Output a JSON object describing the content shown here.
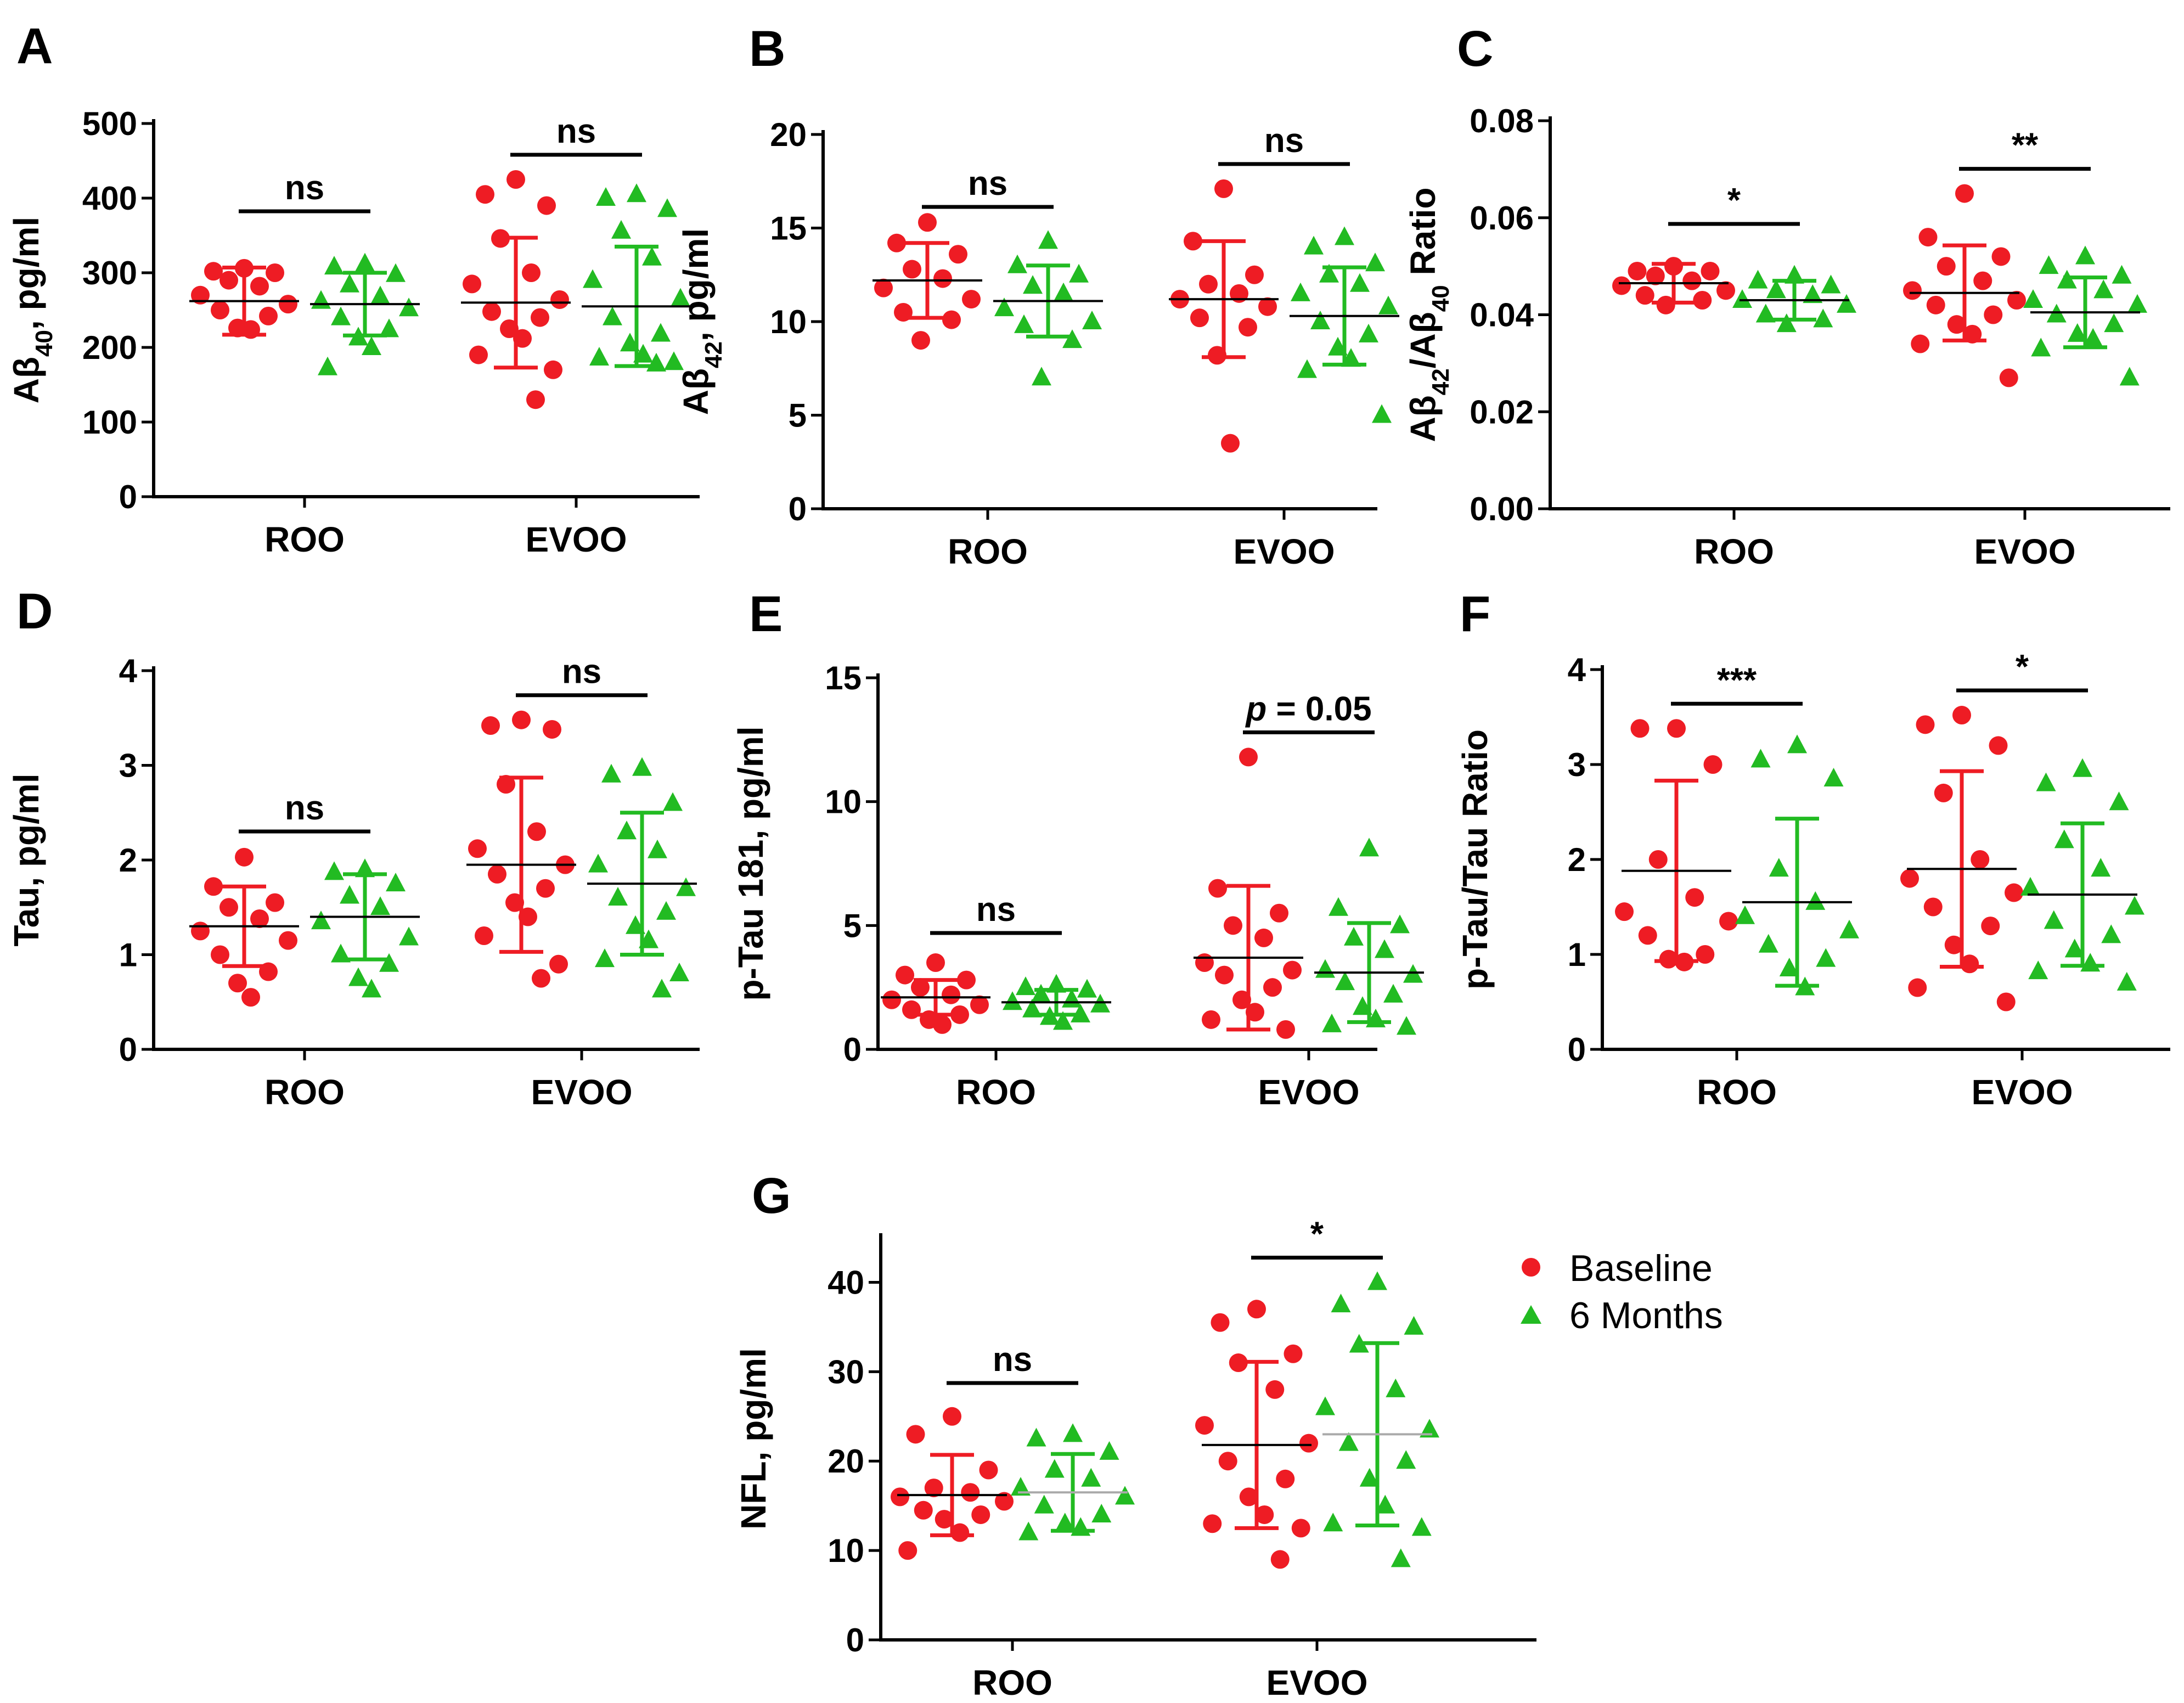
{
  "colors": {
    "baseline": "#ee1c24",
    "six_months": "#22bb22",
    "axis": "#000000",
    "mean_green_G": "#aaaaaa"
  },
  "legend": {
    "items": [
      {
        "label": "Baseline",
        "marker": "circle",
        "color": "#ee1c24"
      },
      {
        "label": "6 Months",
        "marker": "triangle",
        "color": "#22bb22"
      }
    ]
  },
  "chart_data": [
    {
      "panel": "A",
      "type": "scatter",
      "ylabel": "Aβ40, pg/ml",
      "ylim": [
        0,
        500
      ],
      "yticks": [
        "0",
        "100",
        "200",
        "300",
        "400",
        "500"
      ],
      "categories": [
        "ROO",
        "EVOO"
      ],
      "groups": [
        {
          "category": "ROO",
          "series": "Baseline",
          "mean": 262,
          "sd": 45,
          "values": [
            306,
            302,
            300,
            290,
            282,
            270,
            258,
            250,
            242,
            226,
            224
          ]
        },
        {
          "category": "ROO",
          "series": "6 Months",
          "mean": 258,
          "sd": 42,
          "values": [
            312,
            308,
            298,
            284,
            268,
            262,
            252,
            240,
            224,
            213,
            200,
            173
          ]
        },
        {
          "category": "EVOO",
          "series": "Baseline",
          "mean": 260,
          "sd": 87,
          "values": [
            425,
            405,
            390,
            346,
            300,
            285,
            264,
            248,
            240,
            225,
            212,
            190,
            170,
            130
          ]
        },
        {
          "category": "EVOO",
          "series": "6 Months",
          "mean": 255,
          "sd": 80,
          "values": [
            405,
            400,
            385,
            356,
            320,
            290,
            265,
            240,
            218,
            205,
            190,
            186,
            180,
            178
          ]
        }
      ],
      "significance": [
        {
          "category": "ROO",
          "label": "ns"
        },
        {
          "category": "EVOO",
          "label": "ns"
        }
      ]
    },
    {
      "panel": "B",
      "type": "scatter",
      "ylabel": "Aβ42, pg/ml",
      "ylim": [
        0,
        20
      ],
      "yticks": [
        "0",
        "5",
        "10",
        "15",
        "20"
      ],
      "categories": [
        "ROO",
        "EVOO"
      ],
      "groups": [
        {
          "category": "ROO",
          "series": "Baseline",
          "mean": 12.2,
          "sd": 2.0,
          "values": [
            15.3,
            14.2,
            13.6,
            12.8,
            12.3,
            11.8,
            11.2,
            10.5,
            10.1,
            9.0
          ]
        },
        {
          "category": "ROO",
          "series": "6 Months",
          "mean": 11.1,
          "sd": 1.9,
          "values": [
            14.3,
            13.0,
            12.5,
            11.9,
            11.5,
            10.7,
            10.0,
            9.8,
            9.0,
            7.0
          ]
        },
        {
          "category": "EVOO",
          "series": "Baseline",
          "mean": 11.2,
          "sd": 3.1,
          "values": [
            17.1,
            14.3,
            12.5,
            12.0,
            11.5,
            11.2,
            10.8,
            10.2,
            9.7,
            8.2,
            3.5
          ]
        },
        {
          "category": "EVOO",
          "series": "6 Months",
          "mean": 10.3,
          "sd": 2.6,
          "values": [
            14.5,
            14.0,
            13.1,
            12.5,
            12.0,
            11.5,
            10.8,
            10.0,
            9.3,
            8.6,
            8.0,
            7.4,
            5.0
          ]
        }
      ],
      "significance": [
        {
          "category": "ROO",
          "label": "ns"
        },
        {
          "category": "EVOO",
          "label": "ns"
        }
      ]
    },
    {
      "panel": "C",
      "type": "scatter",
      "ylabel": "Aβ42/Aβ40 Ratio",
      "ylim": [
        0,
        0.08
      ],
      "yticks": [
        "0.00",
        "0.02",
        "0.04",
        "0.06",
        "0.08"
      ],
      "categories": [
        "ROO",
        "EVOO"
      ],
      "groups": [
        {
          "category": "ROO",
          "series": "Baseline",
          "mean": 0.0465,
          "sd": 0.004,
          "values": [
            0.05,
            0.049,
            0.049,
            0.048,
            0.047,
            0.046,
            0.045,
            0.044,
            0.043,
            0.042
          ]
        },
        {
          "category": "ROO",
          "series": "6 Months",
          "mean": 0.043,
          "sd": 0.004,
          "values": [
            0.048,
            0.047,
            0.046,
            0.045,
            0.044,
            0.043,
            0.042,
            0.04,
            0.039,
            0.038
          ]
        },
        {
          "category": "EVOO",
          "series": "Baseline",
          "mean": 0.0445,
          "sd": 0.0098,
          "values": [
            0.065,
            0.056,
            0.052,
            0.05,
            0.047,
            0.045,
            0.043,
            0.042,
            0.04,
            0.038,
            0.036,
            0.034,
            0.027
          ]
        },
        {
          "category": "EVOO",
          "series": "6 Months",
          "mean": 0.0405,
          "sd": 0.0072,
          "values": [
            0.052,
            0.05,
            0.048,
            0.047,
            0.045,
            0.043,
            0.042,
            0.04,
            0.038,
            0.036,
            0.035,
            0.033,
            0.027
          ]
        }
      ],
      "significance": [
        {
          "category": "ROO",
          "label": "*"
        },
        {
          "category": "EVOO",
          "label": "**"
        }
      ]
    },
    {
      "panel": "D",
      "type": "scatter",
      "ylabel": "Tau, pg/ml",
      "ylim": [
        0,
        4
      ],
      "yticks": [
        "0",
        "1",
        "2",
        "3",
        "4"
      ],
      "categories": [
        "ROO",
        "EVOO"
      ],
      "groups": [
        {
          "category": "ROO",
          "series": "Baseline",
          "mean": 1.3,
          "sd": 0.42,
          "values": [
            2.03,
            1.72,
            1.55,
            1.5,
            1.38,
            1.25,
            1.15,
            1.0,
            0.82,
            0.7,
            0.55
          ]
        },
        {
          "category": "ROO",
          "series": "6 Months",
          "mean": 1.4,
          "sd": 0.45,
          "values": [
            1.9,
            1.87,
            1.75,
            1.62,
            1.5,
            1.35,
            1.18,
            1.0,
            0.9,
            0.75,
            0.63
          ]
        },
        {
          "category": "EVOO",
          "series": "Baseline",
          "mean": 1.95,
          "sd": 0.92,
          "values": [
            3.48,
            3.42,
            3.38,
            2.8,
            2.3,
            2.12,
            1.95,
            1.85,
            1.7,
            1.55,
            1.4,
            1.2,
            0.9,
            0.75
          ]
        },
        {
          "category": "EVOO",
          "series": "6 Months",
          "mean": 1.75,
          "sd": 0.75,
          "values": [
            2.97,
            2.9,
            2.6,
            2.3,
            2.1,
            1.95,
            1.7,
            1.6,
            1.45,
            1.3,
            1.15,
            0.95,
            0.8,
            0.63
          ]
        }
      ],
      "significance": [
        {
          "category": "ROO",
          "label": "ns"
        },
        {
          "category": "EVOO",
          "label": "ns"
        }
      ]
    },
    {
      "panel": "E",
      "type": "scatter",
      "ylabel": "p-Tau 181, pg/ml",
      "ylim": [
        0,
        15
      ],
      "yticks": [
        "0",
        "5",
        "10",
        "15"
      ],
      "categories": [
        "ROO",
        "EVOO"
      ],
      "groups": [
        {
          "category": "ROO",
          "series": "Baseline",
          "mean": 2.1,
          "sd": 0.7,
          "values": [
            3.5,
            3.0,
            2.8,
            2.5,
            2.2,
            2.0,
            1.8,
            1.6,
            1.4,
            1.2,
            1.0
          ]
        },
        {
          "category": "ROO",
          "series": "6 Months",
          "mean": 1.9,
          "sd": 0.5,
          "values": [
            2.6,
            2.5,
            2.4,
            2.2,
            2.0,
            1.9,
            1.8,
            1.6,
            1.4,
            1.3,
            1.1
          ]
        },
        {
          "category": "EVOO",
          "series": "Baseline",
          "mean": 3.7,
          "sd": 2.9,
          "values": [
            11.8,
            6.5,
            5.5,
            5.0,
            4.5,
            3.5,
            3.2,
            3.0,
            2.5,
            2.0,
            1.5,
            1.2,
            0.8
          ]
        },
        {
          "category": "EVOO",
          "series": "6 Months",
          "mean": 3.1,
          "sd": 2.0,
          "values": [
            8.1,
            5.7,
            5.0,
            4.5,
            4.0,
            3.2,
            3.0,
            2.7,
            2.2,
            1.7,
            1.2,
            1.0,
            0.9
          ]
        }
      ],
      "significance": [
        {
          "category": "ROO",
          "label": "ns"
        },
        {
          "category": "EVOO",
          "label": "p = 0.05"
        }
      ]
    },
    {
      "panel": "F",
      "type": "scatter",
      "ylabel": "p-Tau/Tau Ratio",
      "ylim": [
        0,
        4
      ],
      "yticks": [
        "0",
        "1",
        "2",
        "3",
        "4"
      ],
      "categories": [
        "ROO",
        "EVOO"
      ],
      "groups": [
        {
          "category": "ROO",
          "series": "Baseline",
          "mean": 1.88,
          "sd": 0.95,
          "values": [
            3.38,
            3.38,
            3.0,
            2.0,
            1.6,
            1.45,
            1.35,
            1.2,
            1.0,
            0.95,
            0.92
          ]
        },
        {
          "category": "ROO",
          "series": "6 Months",
          "mean": 1.55,
          "sd": 0.88,
          "values": [
            3.2,
            3.05,
            2.85,
            1.9,
            1.55,
            1.4,
            1.25,
            1.1,
            0.95,
            0.85,
            0.65
          ]
        },
        {
          "category": "EVOO",
          "series": "Baseline",
          "mean": 1.9,
          "sd": 1.03,
          "values": [
            3.52,
            3.42,
            3.2,
            2.7,
            2.0,
            1.8,
            1.65,
            1.5,
            1.3,
            1.1,
            0.9,
            0.65,
            0.5
          ]
        },
        {
          "category": "EVOO",
          "series": "6 Months",
          "mean": 1.63,
          "sd": 0.75,
          "values": [
            2.95,
            2.8,
            2.6,
            2.2,
            1.9,
            1.7,
            1.5,
            1.35,
            1.2,
            1.05,
            0.9,
            0.82,
            0.7
          ]
        }
      ],
      "significance": [
        {
          "category": "ROO",
          "label": "***"
        },
        {
          "category": "EVOO",
          "label": "*"
        }
      ]
    },
    {
      "panel": "G",
      "type": "scatter",
      "ylabel": "NFL, pg/ml",
      "ylim": [
        0,
        45
      ],
      "yticks": [
        "0",
        "10",
        "20",
        "30",
        "40"
      ],
      "categories": [
        "ROO",
        "EVOO"
      ],
      "groups": [
        {
          "category": "ROO",
          "series": "Baseline",
          "mean": 16.2,
          "sd": 4.5,
          "values": [
            25,
            23,
            19,
            17,
            16.5,
            16,
            15.5,
            14.5,
            14,
            13.5,
            12,
            10
          ]
        },
        {
          "category": "ROO",
          "series": "6 Months",
          "mean": 16.5,
          "sd": 4.3,
          "values": [
            23,
            22.5,
            21,
            19,
            18,
            17,
            16,
            15,
            14,
            13,
            12.5,
            12
          ]
        },
        {
          "category": "EVOO",
          "series": "Baseline",
          "mean": 21.8,
          "sd": 9.3,
          "values": [
            37,
            35.5,
            32,
            31,
            28,
            24,
            22,
            20,
            18,
            16,
            14,
            13,
            12.5,
            9
          ]
        },
        {
          "category": "EVOO",
          "series": "6 Months",
          "mean": 23,
          "sd": 10.2,
          "values": [
            40,
            37.5,
            35,
            33,
            28,
            26,
            23.5,
            22,
            20,
            18,
            15,
            13,
            12.5,
            9
          ]
        }
      ],
      "significance": [
        {
          "category": "ROO",
          "label": "ns"
        },
        {
          "category": "EVOO",
          "label": "*"
        }
      ]
    }
  ]
}
